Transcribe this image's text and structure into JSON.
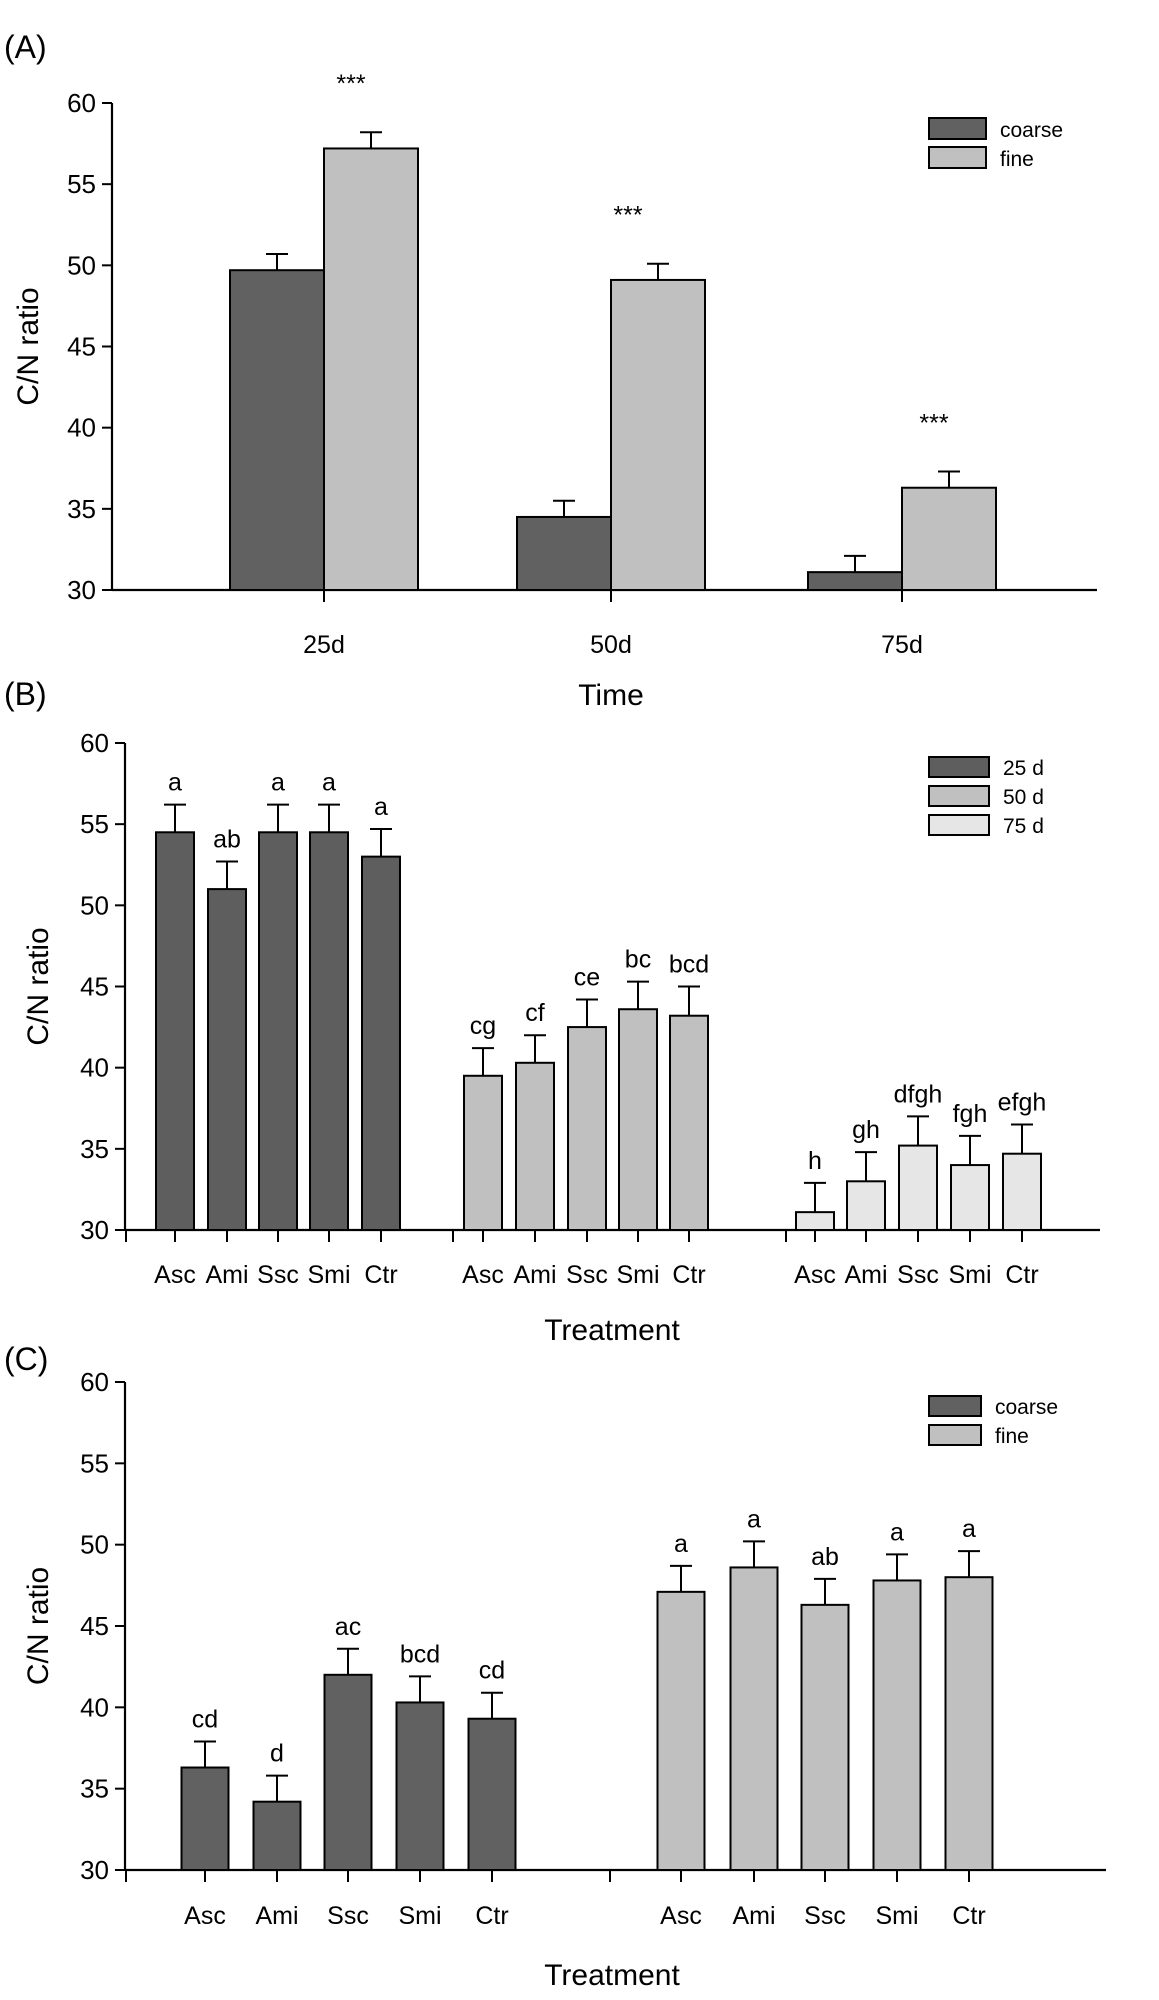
{
  "chart_data": [
    {
      "panel": "(A)",
      "type": "bar",
      "title": "",
      "xlabel": "Time",
      "ylabel": "C/N ratio",
      "ylim": [
        30,
        60
      ],
      "yticks": [
        30,
        35,
        40,
        45,
        50,
        55,
        60
      ],
      "categories": [
        "25d",
        "50d",
        "75d"
      ],
      "series": [
        {
          "name": "coarse",
          "color": "#616161",
          "values": [
            49.7,
            34.5,
            31.1
          ],
          "errors": [
            1.0,
            1.0,
            1.0
          ]
        },
        {
          "name": "fine",
          "color": "#c0c0c0",
          "values": [
            57.2,
            49.1,
            36.3
          ],
          "errors": [
            1.0,
            1.0,
            1.0
          ]
        }
      ],
      "annotations": [
        "***",
        "***",
        "***"
      ],
      "legend": {
        "placement": "top-right",
        "entries": [
          "coarse",
          "fine"
        ]
      }
    },
    {
      "panel": "(B)",
      "type": "bar",
      "title": "",
      "xlabel": "Treatment",
      "ylabel": "C/N ratio",
      "ylim": [
        30,
        60
      ],
      "yticks": [
        30,
        35,
        40,
        45,
        50,
        55,
        60
      ],
      "groups": [
        {
          "name": "25 d",
          "color": "#5e5e5e",
          "categories": [
            "Asc",
            "Ami",
            "Ssc",
            "Smi",
            "Ctr"
          ],
          "values": [
            54.5,
            51.0,
            54.5,
            54.5,
            53.0
          ],
          "errors": [
            1.7,
            1.7,
            1.7,
            1.7,
            1.7
          ],
          "letters": [
            "a",
            "ab",
            "a",
            "a",
            "a"
          ]
        },
        {
          "name": "50 d",
          "color": "#c0c0c0",
          "categories": [
            "Asc",
            "Ami",
            "Ssc",
            "Smi",
            "Ctr"
          ],
          "values": [
            39.5,
            40.3,
            42.5,
            43.6,
            43.2
          ],
          "errors": [
            1.7,
            1.7,
            1.7,
            1.7,
            1.8
          ],
          "letters": [
            "cg",
            "cf",
            "ce",
            "bc",
            "bcd"
          ]
        },
        {
          "name": "75 d",
          "color": "#e6e6e6",
          "categories": [
            "Asc",
            "Ami",
            "Ssc",
            "Smi",
            "Ctr"
          ],
          "values": [
            31.1,
            33.0,
            35.2,
            34.0,
            34.7
          ],
          "errors": [
            1.8,
            1.8,
            1.8,
            1.8,
            1.8
          ],
          "letters": [
            "h",
            "gh",
            "dfgh",
            "fgh",
            "efgh"
          ]
        }
      ],
      "legend": {
        "placement": "top-right",
        "entries": [
          "25 d",
          "50 d",
          "75 d"
        ]
      }
    },
    {
      "panel": "(C)",
      "type": "bar",
      "title": "",
      "xlabel": "Treatment",
      "ylabel": "C/N ratio",
      "ylim": [
        30,
        60
      ],
      "yticks": [
        30,
        35,
        40,
        45,
        50,
        55,
        60
      ],
      "groups": [
        {
          "name": "coarse",
          "color": "#616161",
          "categories": [
            "Asc",
            "Ami",
            "Ssc",
            "Smi",
            "Ctr"
          ],
          "values": [
            36.3,
            34.2,
            42.0,
            40.3,
            39.3
          ],
          "errors": [
            1.6,
            1.6,
            1.6,
            1.6,
            1.6
          ],
          "letters": [
            "cd",
            "d",
            "ac",
            "bcd",
            "cd"
          ]
        },
        {
          "name": "fine",
          "color": "#c0c0c0",
          "categories": [
            "Asc",
            "Ami",
            "Ssc",
            "Smi",
            "Ctr"
          ],
          "values": [
            47.1,
            48.6,
            46.3,
            47.8,
            48.0
          ],
          "errors": [
            1.6,
            1.6,
            1.6,
            1.6,
            1.6
          ],
          "letters": [
            "a",
            "a",
            "ab",
            "a",
            "a"
          ]
        }
      ],
      "legend": {
        "placement": "top-right",
        "entries": [
          "coarse",
          "fine"
        ]
      }
    }
  ]
}
